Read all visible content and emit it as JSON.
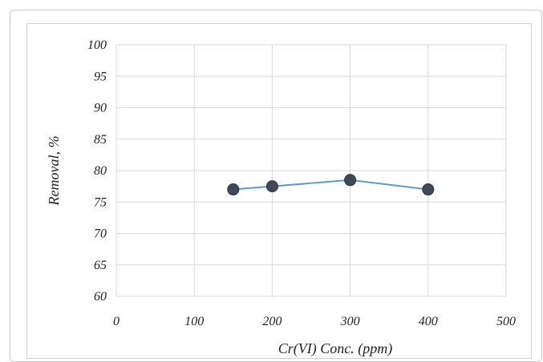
{
  "chart_data": {
    "type": "line",
    "title": "",
    "xlabel": "Cr(VI) Conc. (ppm)",
    "ylabel": "Removal, %",
    "xlim": [
      0,
      500
    ],
    "ylim": [
      60,
      100
    ],
    "x_ticks": [
      0,
      100,
      200,
      300,
      400,
      500
    ],
    "y_ticks": [
      60,
      65,
      70,
      75,
      80,
      85,
      90,
      95,
      100
    ],
    "grid": true,
    "series": [
      {
        "x": [
          150,
          200,
          300,
          400
        ],
        "values": [
          77,
          77.5,
          78.5,
          77
        ],
        "line_color": "#5b9bd5",
        "marker_color": "#404859"
      }
    ]
  }
}
